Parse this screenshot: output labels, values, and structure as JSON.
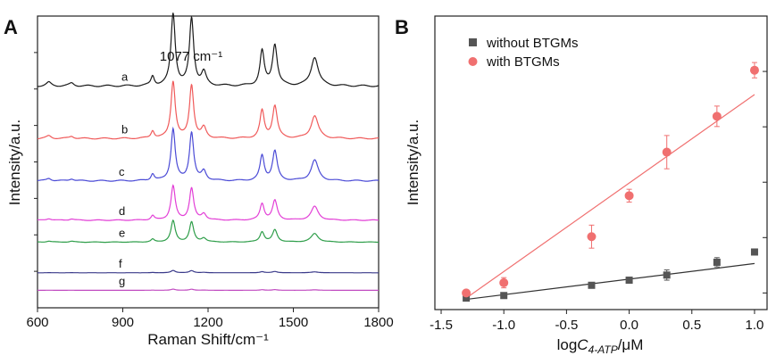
{
  "chart_data": [
    {
      "panel": "A",
      "type": "line",
      "xlabel": "Raman Shift/cm⁻¹",
      "ylabel": "Intensity/a.u.",
      "xlim": [
        600,
        1800
      ],
      "xticks": [
        600,
        900,
        1200,
        1500,
        1800
      ],
      "x_tick_labels": [
        "600",
        "900",
        "1200",
        "1500",
        "1800"
      ],
      "annotation": "1077 cm⁻¹",
      "peaks": [
        {
          "x": 640,
          "w": 10,
          "rel": 0.05
        },
        {
          "x": 720,
          "w": 10,
          "rel": 0.04
        },
        {
          "x": 1005,
          "w": 7,
          "rel": 0.13
        },
        {
          "x": 1077,
          "w": 9,
          "rel": 1.0
        },
        {
          "x": 1142,
          "w": 9,
          "rel": 0.93
        },
        {
          "x": 1185,
          "w": 10,
          "rel": 0.18
        },
        {
          "x": 1390,
          "w": 9,
          "rel": 0.48
        },
        {
          "x": 1435,
          "w": 10,
          "rel": 0.57
        },
        {
          "x": 1575,
          "w": 15,
          "rel": 0.4
        }
      ],
      "series": [
        {
          "name": "a",
          "color": "#1a1a1a",
          "peak_height": 0.95,
          "baseline": 0.76
        },
        {
          "name": "b",
          "color": "#f05a5a",
          "peak_height": 0.75,
          "baseline": 0.58
        },
        {
          "name": "c",
          "color": "#4b4bd6",
          "peak_height": 0.68,
          "baseline": 0.435
        },
        {
          "name": "d",
          "color": "#e23fd6",
          "peak_height": 0.45,
          "baseline": 0.3
        },
        {
          "name": "e",
          "color": "#2f9e4a",
          "peak_height": 0.28,
          "baseline": 0.225
        },
        {
          "name": "f",
          "color": "#3a3a8a",
          "peak_height": 0.03,
          "baseline": 0.12
        },
        {
          "name": "g",
          "color": "#c04ac0",
          "peak_height": 0.015,
          "baseline": 0.06
        }
      ]
    },
    {
      "panel": "B",
      "type": "scatter",
      "xlabel": "logC4-ATP/μM",
      "xlabel_parts": {
        "pre": "log",
        "italic": "C",
        "sub": "4-ATP",
        "post": "/μM"
      },
      "ylabel": "Intensity/a.u.",
      "xlim": [
        -1.5,
        1.1
      ],
      "ylim": [
        0,
        100
      ],
      "xticks": [
        -1.5,
        -1.0,
        -0.5,
        0.0,
        0.5,
        1.0
      ],
      "x_tick_labels": [
        "-1.5",
        "-1.0",
        "-0.5",
        "0.0",
        "0.5",
        "1.0"
      ],
      "series": [
        {
          "name": "without BTGMs",
          "marker": "square",
          "color": "#555555",
          "x": [
            -1.3,
            -1.0,
            -0.3,
            0.0,
            0.3,
            0.7,
            1.0
          ],
          "y": [
            1,
            2,
            6,
            8,
            10,
            15,
            19
          ],
          "err": [
            0.5,
            0.6,
            0.8,
            0.8,
            2.0,
            1.8,
            1.0
          ],
          "fit": {
            "x": [
              -1.3,
              1.0
            ],
            "y": [
              0.5,
              14.5
            ]
          }
        },
        {
          "name": "with BTGMs",
          "marker": "circle",
          "color": "#f07070",
          "x": [
            -1.3,
            -1.0,
            -0.3,
            0.0,
            0.3,
            0.7,
            1.0
          ],
          "y": [
            3,
            7,
            25,
            41,
            58,
            72,
            90
          ],
          "err": [
            1.0,
            2.0,
            4.5,
            2.5,
            6.5,
            4.0,
            3.0
          ],
          "fit": {
            "x": [
              -1.3,
              1.0
            ],
            "y": [
              1.0,
              80.5
            ]
          }
        }
      ]
    }
  ],
  "panels": {
    "a_letter": "A",
    "b_letter": "B"
  }
}
